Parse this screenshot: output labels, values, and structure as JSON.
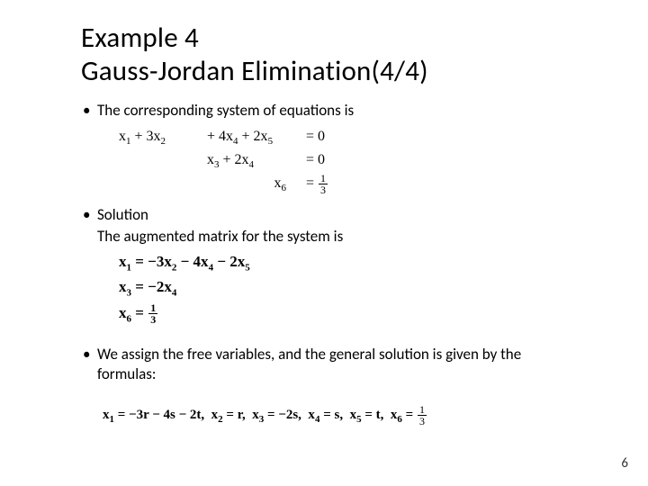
{
  "title_line1": "Example 4",
  "title_line2": "Gauss-Jordan Elimination(4/4)",
  "bullets": {
    "b1": "The corresponding system of equations is",
    "b2": "Solution",
    "b2sub": "The augmented matrix for the system is",
    "b3": "We assign the free variables, and the general solution is given by the formulas:"
  },
  "system": {
    "row1": {
      "c1_html": "x<span class='sub-n'>1</span> + 3x<span class='sub-n'>2</span>",
      "c2_html": "+ 4x<span class='sub-n'>4</span> + 2x<span class='sub-n'>5</span>",
      "c3_html": "= 0"
    },
    "row2": {
      "c1_html": "",
      "c2_html": "x<span class='sub-n'>3</span> + 2x<span class='sub-n'>4</span>",
      "c3_html": "= 0"
    },
    "row3": {
      "c1_html": "",
      "c2_html": "x<span class='sub-n'>6</span>",
      "c3_html": "= <span class='frac'><span class='num'>1</span><span class='den'>3</span></span>"
    }
  },
  "solution": {
    "l1_html": "x<span class='sub-n'>1</span> = −3x<span class='sub-n'>2</span> − 4x<span class='sub-n'>4</span> − 2x<span class='sub-n'>5</span>",
    "l2_html": "x<span class='sub-n'>3</span> = −2x<span class='sub-n'>4</span>",
    "l3_html": "x<span class='sub-n'>6</span> = <span class='frac'><span class='num'>1</span><span class='den'>3</span></span>"
  },
  "general_html": "x<span class='sub-n'>1</span> = −3r − 4s − 2t,&nbsp; x<span class='sub-n'>2</span> = r,&nbsp; x<span class='sub-n'>3</span> = −2s,&nbsp; x<span class='sub-n'>4</span> = s,&nbsp; x<span class='sub-n'>5</span> = t,&nbsp; x<span class='sub-n'>6</span> = <span class='frac'><span class='num'>1</span><span class='den'>3</span></span>",
  "page": "6",
  "colors": {
    "text": "#000000",
    "bg": "#ffffff"
  }
}
